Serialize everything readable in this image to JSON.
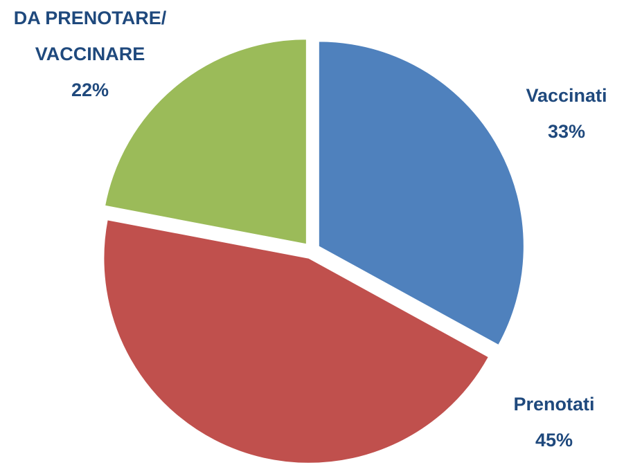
{
  "chart_data": {
    "type": "pie",
    "categories": [
      "Vaccinati",
      "Prenotati",
      "DA PRENOTARE/ VACCINARE"
    ],
    "values": [
      33,
      45,
      22
    ],
    "value_labels": [
      "33%",
      "45%",
      "22%"
    ],
    "colors": [
      "#4f81bd",
      "#c0504d",
      "#9bbb59"
    ]
  }
}
